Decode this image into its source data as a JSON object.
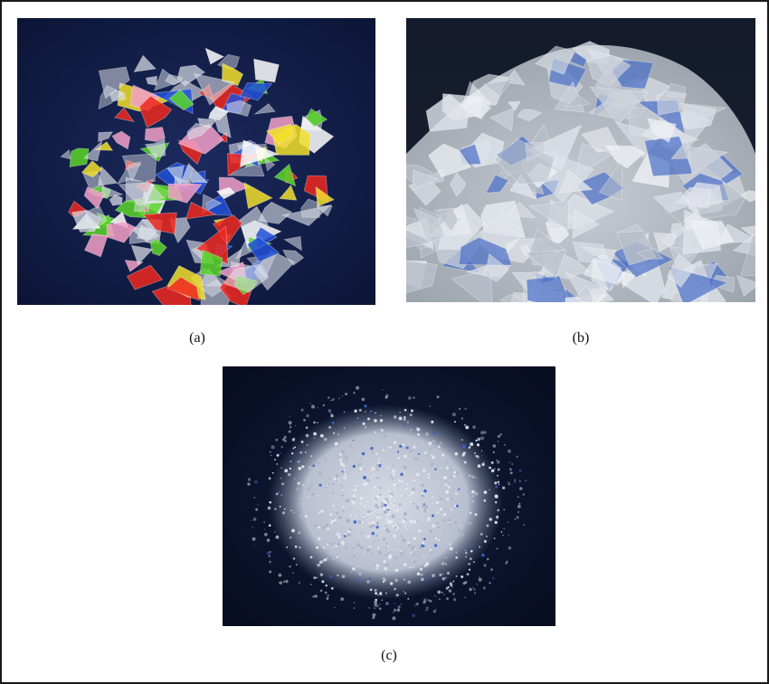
{
  "figure": {
    "panels": [
      {
        "id": "a",
        "caption": "(a)",
        "depicts": "colored-plastic-flakes"
      },
      {
        "id": "b",
        "caption": "(b)",
        "depicts": "clear-plastic-flakes"
      },
      {
        "id": "c",
        "caption": "(c)",
        "depicts": "plastic-granules"
      }
    ]
  },
  "colors": {
    "background_dark": "#0e1730",
    "flake_clear": "#d9dde6",
    "flake_red": "#f0281e",
    "flake_blue": "#2150d8",
    "flake_green": "#5ad62a",
    "flake_yellow": "#f2df2a",
    "granule_blue": "#3a62c8"
  }
}
